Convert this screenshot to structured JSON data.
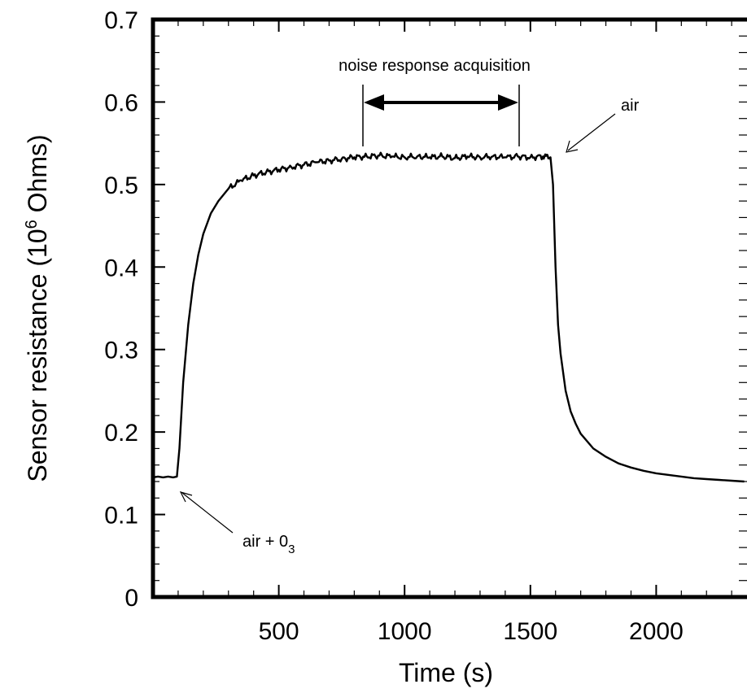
{
  "chart_data": {
    "type": "line",
    "title": "",
    "xlabel": "Time (s)",
    "ylabel": {
      "prefix": "Sensor resistance (10",
      "superscript": "6",
      "suffix": " Ohms)"
    },
    "xlim": [
      0,
      2350
    ],
    "ylim": [
      0,
      0.7
    ],
    "x_ticks": [
      500,
      1000,
      1500,
      2000
    ],
    "x_tick_labels": [
      "500",
      "1000",
      "1500",
      "2000"
    ],
    "y_ticks": [
      0,
      0.1,
      0.2,
      0.3,
      0.4,
      0.5,
      0.6,
      0.7
    ],
    "y_tick_labels": [
      "0",
      "0.1",
      "0.2",
      "0.3",
      "0.4",
      "0.5",
      "0.6",
      "0.7"
    ],
    "grid": false,
    "series": [
      {
        "color": "#000000",
        "x": [
          0,
          20,
          40,
          60,
          80,
          95,
          105,
          120,
          140,
          160,
          180,
          200,
          230,
          260,
          300,
          350,
          400,
          450,
          500,
          550,
          600,
          650,
          700,
          750,
          800,
          850,
          900,
          950,
          1000,
          1050,
          1100,
          1150,
          1200,
          1250,
          1300,
          1350,
          1400,
          1450,
          1500,
          1550,
          1580,
          1590,
          1600,
          1610,
          1620,
          1640,
          1660,
          1680,
          1700,
          1750,
          1800,
          1850,
          1900,
          1950,
          2000,
          2050,
          2100,
          2150,
          2200,
          2250,
          2300,
          2350
        ],
        "y": [
          0.145,
          0.146,
          0.145,
          0.146,
          0.145,
          0.146,
          0.18,
          0.26,
          0.33,
          0.38,
          0.415,
          0.44,
          0.465,
          0.48,
          0.495,
          0.505,
          0.511,
          0.515,
          0.518,
          0.521,
          0.524,
          0.527,
          0.529,
          0.531,
          0.533,
          0.534,
          0.535,
          0.534,
          0.533,
          0.534,
          0.533,
          0.534,
          0.532,
          0.534,
          0.533,
          0.534,
          0.533,
          0.534,
          0.533,
          0.534,
          0.533,
          0.5,
          0.4,
          0.33,
          0.295,
          0.25,
          0.225,
          0.21,
          0.198,
          0.18,
          0.17,
          0.162,
          0.157,
          0.153,
          0.15,
          0.148,
          0.146,
          0.144,
          0.143,
          0.142,
          0.141,
          0.14
        ]
      }
    ],
    "annotations": [
      {
        "text": "noise response acquisition"
      },
      {
        "text": "air"
      },
      {
        "text_main": "air + 0",
        "text_sub": "3"
      }
    ],
    "noise_acquisition_window": [
      840,
      1470
    ],
    "air_marker_point": [
      1590,
      0.535
    ],
    "air_o3_marker_point": [
      95,
      0.146
    ]
  }
}
